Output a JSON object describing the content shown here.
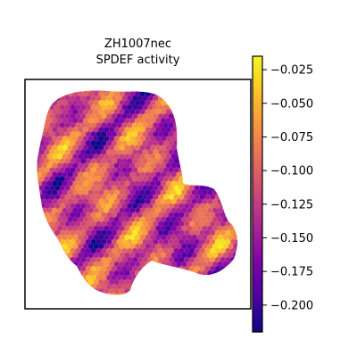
{
  "chart_data": {
    "type": "heatmap",
    "title_lines": [
      "ZH1007nec",
      "SPDEF activity"
    ],
    "colormap": "plasma",
    "colorbar": {
      "range": [
        -0.22,
        -0.015
      ],
      "ticks": [
        "-0.025",
        "-0.050",
        "-0.075",
        "-0.100",
        "-0.125",
        "-0.150",
        "-0.175",
        "-0.200"
      ],
      "tick_values": [
        -0.025,
        -0.05,
        -0.075,
        -0.1,
        -0.125,
        -0.15,
        -0.175,
        -0.2
      ]
    },
    "value_range": [
      -0.22,
      -0.02
    ],
    "grid": false,
    "axes_ticks": false
  },
  "colors": {
    "frame": "#000000",
    "background": "#ffffff"
  }
}
